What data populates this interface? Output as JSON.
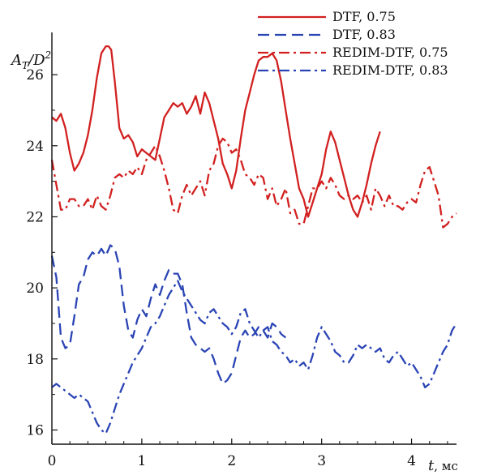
{
  "chart_data": {
    "type": "line",
    "title": "",
    "xlabel": {
      "symbol": "t",
      "unit": ", мс"
    },
    "ylabel": {
      "A": "A",
      "sub": "T",
      "D": "/D",
      "sup": "2"
    },
    "xlim": [
      0,
      4.5
    ],
    "ylim": [
      15.6,
      27.6
    ],
    "xticks": [
      0,
      1,
      2,
      3,
      4
    ],
    "yticks": [
      16,
      18,
      20,
      22,
      24,
      26
    ],
    "grid": false,
    "legend": "top-right",
    "series": [
      {
        "name": "DTF, 0.75",
        "color": "#d22020",
        "dash": "solid",
        "x": [
          0.0,
          0.05,
          0.1,
          0.15,
          0.2,
          0.25,
          0.3,
          0.35,
          0.4,
          0.45,
          0.5,
          0.55,
          0.6,
          0.63,
          0.66,
          0.7,
          0.75,
          0.8,
          0.85,
          0.9,
          0.95,
          1.0,
          1.05,
          1.1,
          1.15,
          1.2,
          1.25,
          1.3,
          1.35,
          1.4,
          1.45,
          1.5,
          1.55,
          1.6,
          1.65,
          1.7,
          1.75,
          1.8,
          1.85,
          1.9,
          1.95,
          2.0,
          2.05,
          2.1,
          2.15,
          2.2,
          2.25,
          2.3,
          2.35,
          2.4,
          2.45,
          2.5,
          2.55,
          2.6,
          2.65,
          2.7,
          2.75,
          2.8,
          2.85,
          2.9,
          2.95,
          3.0,
          3.05,
          3.1,
          3.15,
          3.2,
          3.25,
          3.3,
          3.35,
          3.4,
          3.45,
          3.5,
          3.55,
          3.6,
          3.65
        ],
        "values": [
          24.8,
          24.7,
          24.9,
          24.5,
          23.8,
          23.3,
          23.5,
          23.8,
          24.3,
          25.0,
          25.9,
          26.6,
          26.8,
          26.8,
          26.7,
          25.8,
          24.5,
          24.2,
          24.3,
          24.1,
          23.7,
          23.9,
          23.8,
          23.7,
          23.6,
          24.2,
          24.8,
          25.0,
          25.2,
          25.1,
          25.2,
          24.9,
          25.1,
          25.4,
          24.9,
          25.5,
          25.2,
          24.7,
          24.2,
          23.5,
          23.2,
          22.8,
          23.3,
          24.2,
          25.0,
          25.5,
          26.0,
          26.4,
          26.5,
          26.5,
          26.6,
          26.4,
          25.8,
          25.0,
          24.2,
          23.5,
          22.8,
          22.5,
          22.0,
          22.4,
          22.8,
          23.2,
          23.9,
          24.4,
          24.1,
          23.6,
          23.1,
          22.6,
          22.2,
          22.0,
          22.4,
          22.9,
          23.5,
          24.0,
          24.4
        ]
      },
      {
        "name": "DTF, 0.83",
        "color": "#2a44b4",
        "dash": "dashed",
        "x": [
          0.0,
          0.05,
          0.1,
          0.15,
          0.2,
          0.25,
          0.3,
          0.35,
          0.4,
          0.45,
          0.5,
          0.55,
          0.6,
          0.65,
          0.7,
          0.75,
          0.8,
          0.85,
          0.9,
          0.95,
          1.0,
          1.05,
          1.1,
          1.15,
          1.2,
          1.25,
          1.3,
          1.35,
          1.4,
          1.45,
          1.5,
          1.55,
          1.6,
          1.65,
          1.7,
          1.75,
          1.8,
          1.85,
          1.9,
          1.95,
          2.0,
          2.05,
          2.1,
          2.15,
          2.2,
          2.25,
          2.3,
          2.35,
          2.4,
          2.45,
          2.5,
          2.55,
          2.6
        ],
        "values": [
          20.9,
          20.3,
          18.6,
          18.3,
          18.4,
          19.2,
          20.1,
          20.3,
          20.8,
          21.0,
          20.9,
          21.1,
          20.9,
          21.2,
          21.1,
          20.6,
          19.5,
          18.8,
          18.6,
          19.1,
          19.4,
          19.2,
          19.7,
          20.1,
          19.8,
          20.2,
          20.5,
          20.4,
          20.4,
          20.1,
          19.3,
          18.6,
          18.4,
          18.3,
          18.2,
          18.3,
          18.0,
          17.6,
          17.3,
          17.4,
          17.6,
          18.1,
          18.6,
          18.8,
          18.6,
          18.7,
          18.9,
          18.8,
          18.6,
          19.0,
          18.9,
          18.7,
          18.6
        ]
      },
      {
        "name": "REDIM-DTF, 0.75",
        "color": "#d22020",
        "dash": "dashdot",
        "x": [
          0.0,
          0.05,
          0.1,
          0.15,
          0.2,
          0.25,
          0.3,
          0.35,
          0.4,
          0.45,
          0.5,
          0.55,
          0.6,
          0.65,
          0.7,
          0.75,
          0.8,
          0.85,
          0.9,
          0.95,
          1.0,
          1.05,
          1.1,
          1.15,
          1.2,
          1.25,
          1.3,
          1.35,
          1.4,
          1.45,
          1.5,
          1.55,
          1.6,
          1.65,
          1.7,
          1.75,
          1.8,
          1.85,
          1.9,
          1.95,
          2.0,
          2.05,
          2.1,
          2.15,
          2.2,
          2.25,
          2.3,
          2.35,
          2.4,
          2.45,
          2.5,
          2.55,
          2.6,
          2.65,
          2.7,
          2.75,
          2.8,
          2.85,
          2.9,
          2.95,
          3.0,
          3.05,
          3.1,
          3.15,
          3.2,
          3.25,
          3.3,
          3.35,
          3.4,
          3.45,
          3.5,
          3.55,
          3.6,
          3.65,
          3.7,
          3.75,
          3.8,
          3.85,
          3.9,
          3.95,
          4.0,
          4.05,
          4.1,
          4.15,
          4.2,
          4.25,
          4.3,
          4.35,
          4.4,
          4.45,
          4.5
        ],
        "values": [
          23.6,
          22.9,
          22.2,
          22.2,
          22.5,
          22.5,
          22.3,
          22.3,
          22.5,
          22.2,
          22.6,
          22.3,
          22.2,
          22.6,
          23.1,
          23.2,
          23.1,
          23.3,
          23.2,
          23.4,
          23.2,
          23.6,
          23.8,
          24.0,
          23.7,
          23.3,
          22.8,
          22.2,
          22.1,
          22.6,
          22.9,
          22.6,
          22.8,
          23.0,
          22.6,
          23.3,
          23.5,
          24.0,
          24.2,
          24.1,
          23.8,
          23.9,
          23.6,
          23.2,
          23.1,
          22.9,
          23.2,
          23.1,
          22.5,
          22.8,
          22.3,
          22.5,
          22.8,
          22.1,
          22.2,
          21.8,
          21.8,
          22.3,
          22.8,
          22.8,
          23.0,
          22.8,
          23.1,
          22.9,
          22.6,
          22.5,
          22.6,
          22.5,
          22.6,
          22.4,
          22.6,
          22.2,
          22.8,
          22.6,
          22.3,
          22.6,
          22.3,
          22.3,
          22.2,
          22.4,
          22.5,
          22.4,
          22.9,
          23.3,
          23.4,
          23.0,
          22.6,
          21.7,
          21.8,
          22.0,
          22.1
        ]
      },
      {
        "name": "REDIM-DTF, 0.83",
        "color": "#2a44b4",
        "dash": "dashdot",
        "x": [
          0.0,
          0.05,
          0.1,
          0.15,
          0.2,
          0.25,
          0.3,
          0.35,
          0.4,
          0.45,
          0.5,
          0.55,
          0.6,
          0.65,
          0.7,
          0.75,
          0.8,
          0.85,
          0.9,
          0.95,
          1.0,
          1.05,
          1.1,
          1.15,
          1.2,
          1.25,
          1.3,
          1.35,
          1.4,
          1.45,
          1.5,
          1.55,
          1.6,
          1.65,
          1.7,
          1.75,
          1.8,
          1.85,
          1.9,
          1.95,
          2.0,
          2.05,
          2.1,
          2.15,
          2.2,
          2.25,
          2.3,
          2.35,
          2.4,
          2.45,
          2.5,
          2.55,
          2.6,
          2.65,
          2.7,
          2.75,
          2.8,
          2.85,
          2.9,
          2.95,
          3.0,
          3.05,
          3.1,
          3.15,
          3.2,
          3.25,
          3.3,
          3.35,
          3.4,
          3.45,
          3.5,
          3.55,
          3.6,
          3.65,
          3.7,
          3.75,
          3.8,
          3.85,
          3.9,
          3.95,
          4.0,
          4.05,
          4.1,
          4.15,
          4.2,
          4.25,
          4.3,
          4.35,
          4.4,
          4.45,
          4.5
        ],
        "values": [
          17.2,
          17.3,
          17.2,
          17.1,
          17.0,
          16.9,
          17.0,
          16.9,
          16.8,
          16.5,
          16.2,
          16.0,
          15.9,
          16.2,
          16.6,
          17.0,
          17.3,
          17.6,
          17.9,
          18.1,
          18.3,
          18.6,
          18.9,
          19.0,
          19.2,
          19.5,
          19.8,
          20.0,
          20.2,
          19.9,
          19.7,
          19.5,
          19.3,
          19.1,
          19.0,
          19.3,
          19.4,
          19.2,
          19.0,
          18.9,
          18.7,
          18.9,
          19.3,
          19.4,
          19.0,
          18.8,
          18.6,
          18.8,
          18.9,
          18.5,
          18.4,
          18.2,
          18.1,
          17.9,
          18.0,
          17.8,
          17.9,
          17.7,
          18.1,
          18.6,
          18.9,
          18.7,
          18.5,
          18.2,
          18.1,
          17.9,
          17.9,
          18.1,
          18.4,
          18.3,
          18.4,
          18.3,
          18.2,
          18.3,
          18.0,
          17.9,
          18.1,
          18.2,
          18.0,
          17.8,
          17.9,
          17.7,
          17.5,
          17.2,
          17.3,
          17.6,
          17.9,
          18.2,
          18.4,
          18.8,
          19.0
        ]
      }
    ]
  }
}
